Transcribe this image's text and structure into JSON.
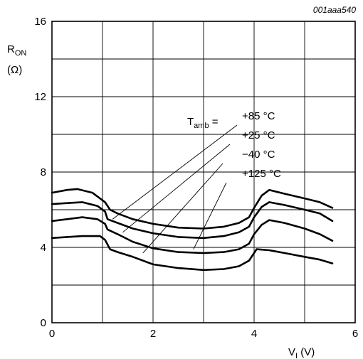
{
  "figure_code": "001aaa540",
  "chart_data": {
    "type": "line",
    "ylabel": "R",
    "ylabel_sub": "ON",
    "ylabel_unit": "(Ω)",
    "xlabel": "V",
    "xlabel_sub": "I",
    "xlabel_unit": " (V)",
    "xlim": [
      0,
      6
    ],
    "ylim": [
      0,
      16
    ],
    "xticks": [
      0,
      2,
      4,
      6
    ],
    "yticks": [
      0,
      4,
      8,
      12,
      16
    ],
    "x_gridlines": [
      0,
      1,
      2,
      3,
      4,
      5,
      6
    ],
    "y_gridlines": [
      0,
      2,
      4,
      6,
      8,
      10,
      12,
      14,
      16
    ],
    "grid": true,
    "legend_title": "T",
    "legend_title_sub": "amb",
    "series": [
      {
        "name": "+85 °C",
        "points": [
          [
            0,
            6.9
          ],
          [
            0.3,
            7.05
          ],
          [
            0.5,
            7.1
          ],
          [
            0.8,
            6.9
          ],
          [
            1.05,
            6.4
          ],
          [
            1.15,
            6.0
          ],
          [
            1.3,
            5.8
          ],
          [
            1.6,
            5.5
          ],
          [
            2.0,
            5.25
          ],
          [
            2.5,
            5.05
          ],
          [
            3.0,
            5.0
          ],
          [
            3.4,
            5.1
          ],
          [
            3.7,
            5.3
          ],
          [
            3.9,
            5.6
          ],
          [
            4.0,
            6.1
          ],
          [
            4.15,
            6.75
          ],
          [
            4.3,
            7.05
          ],
          [
            4.6,
            6.85
          ],
          [
            5.0,
            6.6
          ],
          [
            5.3,
            6.4
          ],
          [
            5.55,
            6.1
          ]
        ]
      },
      {
        "name": "+25 °C",
        "points": [
          [
            0,
            6.3
          ],
          [
            0.3,
            6.35
          ],
          [
            0.6,
            6.4
          ],
          [
            0.9,
            6.2
          ],
          [
            1.05,
            5.9
          ],
          [
            1.1,
            5.5
          ],
          [
            1.3,
            5.3
          ],
          [
            1.6,
            5.0
          ],
          [
            2.0,
            4.75
          ],
          [
            2.5,
            4.55
          ],
          [
            3.0,
            4.5
          ],
          [
            3.4,
            4.6
          ],
          [
            3.7,
            4.8
          ],
          [
            3.9,
            5.1
          ],
          [
            4.0,
            5.6
          ],
          [
            4.15,
            6.15
          ],
          [
            4.3,
            6.4
          ],
          [
            4.6,
            6.25
          ],
          [
            5.0,
            6.0
          ],
          [
            5.3,
            5.8
          ],
          [
            5.55,
            5.4
          ]
        ]
      },
      {
        "name": "−40 °C",
        "points": [
          [
            0,
            5.4
          ],
          [
            0.3,
            5.5
          ],
          [
            0.6,
            5.6
          ],
          [
            0.9,
            5.5
          ],
          [
            1.05,
            5.25
          ],
          [
            1.1,
            4.95
          ],
          [
            1.3,
            4.7
          ],
          [
            1.6,
            4.3
          ],
          [
            2.0,
            3.95
          ],
          [
            2.5,
            3.75
          ],
          [
            3.0,
            3.7
          ],
          [
            3.4,
            3.75
          ],
          [
            3.7,
            3.9
          ],
          [
            3.9,
            4.2
          ],
          [
            4.0,
            4.7
          ],
          [
            4.15,
            5.2
          ],
          [
            4.3,
            5.45
          ],
          [
            4.6,
            5.3
          ],
          [
            5.0,
            5.0
          ],
          [
            5.3,
            4.7
          ],
          [
            5.55,
            4.35
          ]
        ]
      },
      {
        "name": "+125 °C",
        "points": [
          [
            0,
            4.5
          ],
          [
            0.3,
            4.55
          ],
          [
            0.6,
            4.6
          ],
          [
            0.95,
            4.6
          ],
          [
            1.05,
            4.4
          ],
          [
            1.15,
            3.9
          ],
          [
            1.3,
            3.75
          ],
          [
            1.6,
            3.5
          ],
          [
            2.0,
            3.1
          ],
          [
            2.5,
            2.9
          ],
          [
            3.0,
            2.8
          ],
          [
            3.4,
            2.85
          ],
          [
            3.7,
            3.0
          ],
          [
            3.9,
            3.3
          ],
          [
            4.0,
            3.7
          ],
          [
            4.05,
            3.9
          ],
          [
            4.3,
            3.85
          ],
          [
            4.6,
            3.7
          ],
          [
            5.0,
            3.5
          ],
          [
            5.3,
            3.35
          ],
          [
            5.55,
            3.15
          ]
        ]
      }
    ]
  }
}
